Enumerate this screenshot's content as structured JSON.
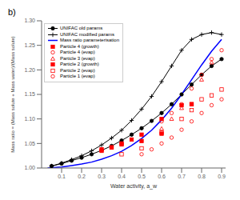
{
  "chart_data": {
    "type": "line",
    "title": "b)",
    "x_label": "Water activity, a_w",
    "y_label": "Mass ratio = (Mass solute + Mass water)/(Mass solute)",
    "xlim": [
      0.0,
      0.92
    ],
    "ylim": [
      1.0,
      1.3
    ],
    "xticks": [
      0.1,
      0.2,
      0.3,
      0.4,
      0.5,
      0.6,
      0.7,
      0.8,
      0.9
    ],
    "yticks": [
      {
        "value": 1.0,
        "label": "1.00"
      },
      1.05,
      {
        "value": 1.1,
        "label": "1.10"
      },
      1.15,
      {
        "value": 1.2,
        "label": "1.20"
      },
      1.25,
      {
        "value": 1.3,
        "label": "1.30"
      }
    ],
    "grid": false,
    "legend": "upper left",
    "series": [
      {
        "name": "UNIFAC old params",
        "type": "line",
        "color": "black",
        "marker": "filled_circle",
        "line_style": "solid",
        "x": [
          0.05,
          0.1,
          0.15,
          0.2,
          0.25,
          0.3,
          0.35,
          0.4,
          0.45,
          0.5,
          0.55,
          0.6,
          0.65,
          0.7,
          0.75,
          0.8,
          0.85,
          0.9
        ],
        "values": [
          1.004,
          1.009,
          1.015,
          1.021,
          1.028,
          1.036,
          1.045,
          1.056,
          1.068,
          1.081,
          1.096,
          1.112,
          1.13,
          1.15,
          1.17,
          1.19,
          1.208,
          1.222
        ]
      },
      {
        "name": "UNIFAC modified params",
        "type": "line",
        "color": "black",
        "marker": "plus",
        "line_style": "solid",
        "x": [
          0.05,
          0.1,
          0.15,
          0.2,
          0.25,
          0.3,
          0.35,
          0.4,
          0.45,
          0.5,
          0.55,
          0.6,
          0.65,
          0.7,
          0.75,
          0.8,
          0.85,
          0.9
        ],
        "values": [
          1.004,
          1.01,
          1.017,
          1.025,
          1.035,
          1.047,
          1.061,
          1.077,
          1.097,
          1.12,
          1.146,
          1.176,
          1.208,
          1.24,
          1.262,
          1.272,
          1.276,
          1.272
        ]
      },
      {
        "name": "Mass ratio parameterisation",
        "type": "line",
        "color": "blue",
        "marker": "none",
        "line_style": "solid",
        "x": [
          0.03,
          0.1,
          0.15,
          0.2,
          0.25,
          0.3,
          0.35,
          0.4,
          0.45,
          0.5,
          0.55,
          0.6,
          0.65,
          0.7,
          0.75,
          0.8,
          0.85,
          0.9
        ],
        "values": [
          1.0,
          1.002,
          1.005,
          1.008,
          1.012,
          1.018,
          1.025,
          1.034,
          1.046,
          1.06,
          1.077,
          1.098,
          1.122,
          1.15,
          1.18,
          1.21,
          1.238,
          1.262
        ]
      },
      {
        "name": "Particle 4 (growth)",
        "type": "scatter",
        "color": "red",
        "marker": "filled_square",
        "line_style": "none",
        "x": [
          0.3,
          0.35,
          0.4,
          0.5,
          0.6,
          0.75
        ],
        "values": [
          1.035,
          1.042,
          1.05,
          1.055,
          1.07,
          1.13
        ]
      },
      {
        "name": "Particle 4 (evap)",
        "type": "scatter",
        "color": "red",
        "marker": "open_circle",
        "line_style": "none",
        "x": [
          0.6,
          0.65,
          0.7,
          0.75,
          0.8,
          0.85,
          0.9
        ],
        "values": [
          1.095,
          1.112,
          1.13,
          1.162,
          1.19,
          1.222,
          1.24
        ]
      },
      {
        "name": "Particle 3 (evap)",
        "type": "scatter",
        "color": "red",
        "marker": "open_triangle",
        "line_style": "none",
        "x": [
          0.6,
          0.65,
          0.7,
          0.8,
          0.85
        ],
        "values": [
          1.08,
          1.1,
          1.122,
          1.18,
          1.215
        ]
      },
      {
        "name": "Particle 2 (growth)",
        "type": "scatter",
        "color": "red",
        "marker": "filled_square",
        "line_style": "none",
        "x": [
          0.3,
          0.35,
          0.4,
          0.45,
          0.5,
          0.6,
          0.7,
          0.75
        ],
        "values": [
          1.038,
          1.042,
          1.048,
          1.058,
          1.068,
          1.1,
          1.128,
          1.13
        ]
      },
      {
        "name": "Particle 2 (evap)",
        "type": "scatter",
        "color": "red",
        "marker": "open_square",
        "line_style": "none",
        "x": [
          0.4,
          0.5,
          0.6,
          0.7,
          0.75,
          0.8,
          0.85,
          0.9
        ],
        "values": [
          1.028,
          1.04,
          1.072,
          1.1,
          1.118,
          1.14,
          1.148,
          1.16
        ]
      },
      {
        "name": "Particle 1 (evap)",
        "type": "scatter",
        "color": "red",
        "marker": "open_circle",
        "line_style": "none",
        "x": [
          0.5,
          0.55,
          0.6,
          0.65,
          0.7,
          0.75,
          0.8,
          0.85,
          0.9
        ],
        "values": [
          1.028,
          1.038,
          1.05,
          1.062,
          1.078,
          1.095,
          1.112,
          1.128,
          1.14
        ]
      }
    ]
  }
}
